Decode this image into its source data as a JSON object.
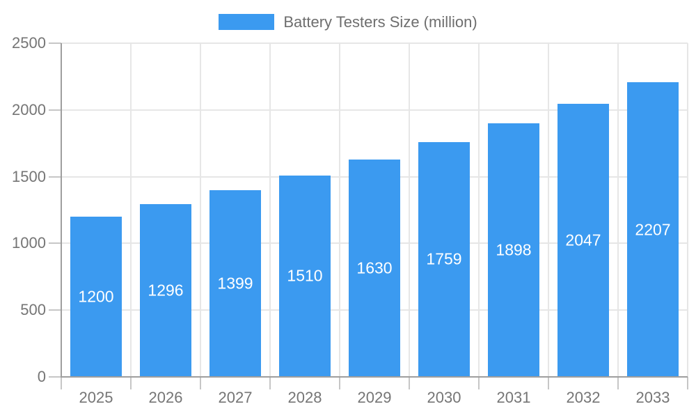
{
  "legend": {
    "label": "Battery Testers Size (million)"
  },
  "chart_data": {
    "type": "bar",
    "title": "Battery Testers Size (million)",
    "series_name": "Battery Testers Size (million)",
    "categories": [
      "2025",
      "2026",
      "2027",
      "2028",
      "2029",
      "2030",
      "2031",
      "2032",
      "2033"
    ],
    "values": [
      1200,
      1296,
      1399,
      1510,
      1630,
      1759,
      1898,
      2047,
      2207
    ],
    "xlabel": "",
    "ylabel": "",
    "ylim": [
      0,
      2500
    ],
    "yticks": [
      0,
      500,
      1000,
      1500,
      2000,
      2500
    ],
    "grid": true,
    "legend_position": "top",
    "value_labels": "inside-center"
  },
  "colors": {
    "bar": "#3b9af0",
    "grid": "#e6e6e6",
    "axis": "#9e9e9e",
    "tick": "#c6c6c6",
    "axis_text": "#757575",
    "legend_text": "#6e6e6e",
    "bar_label_text": "#ffffff",
    "background": "#ffffff"
  }
}
